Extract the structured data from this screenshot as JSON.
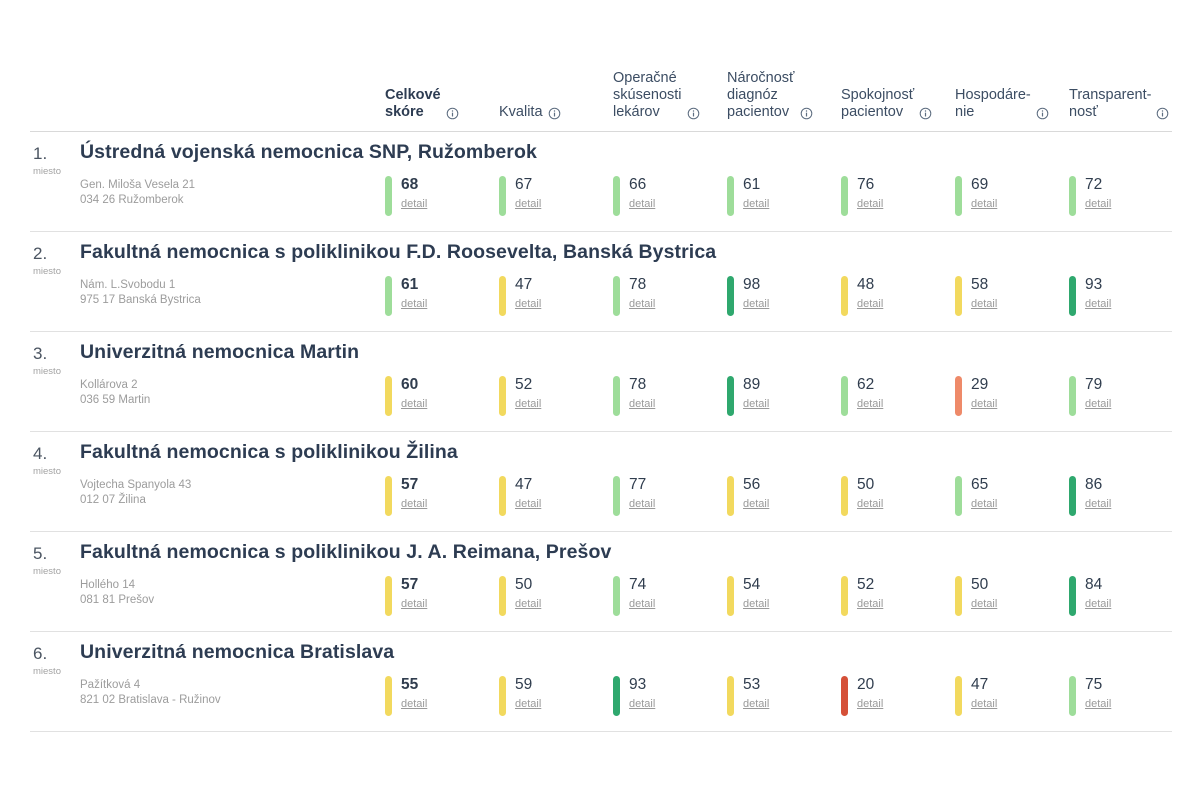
{
  "icons": {
    "info": "circled-i"
  },
  "palette": {
    "light_green": "#9edd9a",
    "dark_green": "#2fa86e",
    "yellow": "#f2d95e",
    "orange": "#ee8a69",
    "red": "#d55038"
  },
  "labels": {
    "detail": "detail",
    "miesto": "miesto"
  },
  "header": {
    "columns": [
      {
        "label": "Celkové\nskóre",
        "bold": true
      },
      {
        "label": "Kvalita",
        "bold": false
      },
      {
        "label": "Operačné\nskúsenosti\nlekárov",
        "bold": false
      },
      {
        "label": "Náročnosť\ndiagnóz\npacientov",
        "bold": false
      },
      {
        "label": "Spokojnosť\npacientov",
        "bold": false
      },
      {
        "label": "Hospodáre-\nnie",
        "bold": false
      },
      {
        "label": "Transparent-\nnosť",
        "bold": false
      }
    ]
  },
  "rows": [
    {
      "rank": "1.",
      "name": "Ústredná vojenská nemocnica SNP, Ružomberok",
      "address1": "Gen. Miloša Vesela 21",
      "address2": "034 26 Ružomberok",
      "scores": [
        {
          "value": "68",
          "color": "light_green"
        },
        {
          "value": "67",
          "color": "light_green"
        },
        {
          "value": "66",
          "color": "light_green"
        },
        {
          "value": "61",
          "color": "light_green"
        },
        {
          "value": "76",
          "color": "light_green"
        },
        {
          "value": "69",
          "color": "light_green"
        },
        {
          "value": "72",
          "color": "light_green"
        }
      ]
    },
    {
      "rank": "2.",
      "name": "Fakultná nemocnica s poliklinikou F.D. Roosevelta, Banská Bystrica",
      "address1": "Nám. L.Svobodu 1",
      "address2": "975 17 Banská Bystrica",
      "scores": [
        {
          "value": "61",
          "color": "light_green"
        },
        {
          "value": "47",
          "color": "yellow"
        },
        {
          "value": "78",
          "color": "light_green"
        },
        {
          "value": "98",
          "color": "dark_green"
        },
        {
          "value": "48",
          "color": "yellow"
        },
        {
          "value": "58",
          "color": "yellow"
        },
        {
          "value": "93",
          "color": "dark_green"
        }
      ]
    },
    {
      "rank": "3.",
      "name": "Univerzitná nemocnica Martin",
      "address1": "Kollárova 2",
      "address2": "036 59 Martin",
      "scores": [
        {
          "value": "60",
          "color": "yellow"
        },
        {
          "value": "52",
          "color": "yellow"
        },
        {
          "value": "78",
          "color": "light_green"
        },
        {
          "value": "89",
          "color": "dark_green"
        },
        {
          "value": "62",
          "color": "light_green"
        },
        {
          "value": "29",
          "color": "orange"
        },
        {
          "value": "79",
          "color": "light_green"
        }
      ]
    },
    {
      "rank": "4.",
      "name": "Fakultná nemocnica s poliklinikou Žilina",
      "address1": "Vojtecha Spanyola 43",
      "address2": "012 07 Žilina",
      "scores": [
        {
          "value": "57",
          "color": "yellow"
        },
        {
          "value": "47",
          "color": "yellow"
        },
        {
          "value": "77",
          "color": "light_green"
        },
        {
          "value": "56",
          "color": "yellow"
        },
        {
          "value": "50",
          "color": "yellow"
        },
        {
          "value": "65",
          "color": "light_green"
        },
        {
          "value": "86",
          "color": "dark_green"
        }
      ]
    },
    {
      "rank": "5.",
      "name": "Fakultná nemocnica s poliklinikou J. A. Reimana, Prešov",
      "address1": "Hollého 14",
      "address2": "081 81 Prešov",
      "scores": [
        {
          "value": "57",
          "color": "yellow"
        },
        {
          "value": "50",
          "color": "yellow"
        },
        {
          "value": "74",
          "color": "light_green"
        },
        {
          "value": "54",
          "color": "yellow"
        },
        {
          "value": "52",
          "color": "yellow"
        },
        {
          "value": "50",
          "color": "yellow"
        },
        {
          "value": "84",
          "color": "dark_green"
        }
      ]
    },
    {
      "rank": "6.",
      "name": "Univerzitná nemocnica Bratislava",
      "address1": "Pažítková 4",
      "address2": "821 02 Bratislava - Ružinov",
      "scores": [
        {
          "value": "55",
          "color": "yellow"
        },
        {
          "value": "59",
          "color": "yellow"
        },
        {
          "value": "93",
          "color": "dark_green"
        },
        {
          "value": "53",
          "color": "yellow"
        },
        {
          "value": "20",
          "color": "red"
        },
        {
          "value": "47",
          "color": "yellow"
        },
        {
          "value": "75",
          "color": "light_green"
        }
      ]
    }
  ]
}
